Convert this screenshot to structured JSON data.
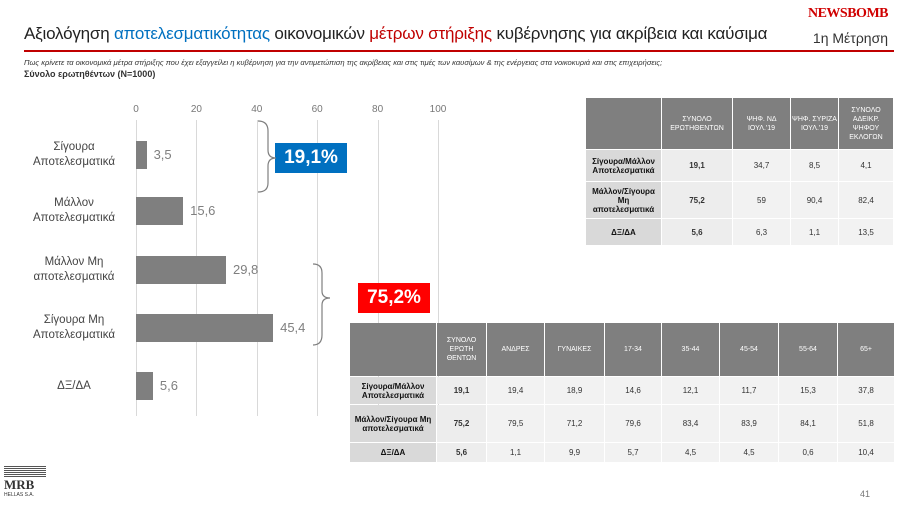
{
  "header": {
    "title": [
      "Αξιολόγηση ",
      "αποτελεσματικότητας",
      " οικονομικών ",
      "μέτρων στήριξης",
      " κυβέρνησης  για ακρίβεια και καύσιμα"
    ],
    "brand": "NEWSBOMB",
    "wave": "1η Μέτρηση",
    "question": "Πως κρίνετε τα οικονομικά μέτρα στήριξης που έχει εξαγγείλει η κυβέρνηση  για την αντιμετώπιση της ακρίβειας και στις τιμές των καυσίμων & της ενέργειας στα νοικοκυριά και στις επιχειρήσεις;",
    "base": "Σύνολο ερωτηθέντων (N=1000)"
  },
  "chart_data": {
    "type": "bar",
    "orientation": "horizontal",
    "categories": [
      "Σίγουρα Αποτελεσματικά",
      "Μάλλον Αποτελεσματικά",
      "Μάλλον Μη αποτελεσματικά",
      "Σίγουρα Μη Αποτελεσματικά",
      "ΔΞ/ΔΑ"
    ],
    "values": [
      3.5,
      15.6,
      29.8,
      45.4,
      5.6
    ],
    "value_labels": [
      "3,5",
      "15,6",
      "29,8",
      "45,4",
      "5,6"
    ],
    "color": "#7f7f7f",
    "xlim": [
      0,
      100
    ],
    "xticks": [
      0,
      20,
      40,
      60,
      80,
      100
    ],
    "grid": true,
    "annotations": [
      {
        "text": "19,1%",
        "color": "#0070c0"
      },
      {
        "text": "75,2%",
        "color": "#ff0000"
      }
    ]
  },
  "tables": [
    {
      "columns": [
        "",
        "ΣΥΝΟΛΟ ΕΡΩΤΗΘΕΝΤΩΝ",
        "ΨΗΦ. ΝΔ ΙΟΥΛ.'19",
        "ΨΗΦ. ΣΥΡΙΖΑ ΙΟΥΛ.'19",
        "ΣΥΝΟΛΟ ΑΔΕΙΚΡ. ΨΗΦΟΥ ΕΚΛΟΓΩΝ"
      ],
      "rows": [
        [
          "Σίγουρα/Μάλλον Αποτελεσματικά",
          "19,1",
          "34,7",
          "8,5",
          "4,1"
        ],
        [
          "Μάλλον/Σίγουρα Μη αποτελεσματικά",
          "75,2",
          "59",
          "90,4",
          "82,4"
        ],
        [
          "ΔΞ/ΔΑ",
          "5,6",
          "6,3",
          "1,1",
          "13,5"
        ]
      ]
    },
    {
      "columns": [
        "",
        "ΣΥΝΟΛΟ ΕΡΩΤΗ ΘΕΝΤΩΝ",
        "ΑΝΔΡΕΣ",
        "ΓΥΝΑΙΚΕΣ",
        "17-34",
        "35-44",
        "45-54",
        "55-64",
        "65+"
      ],
      "rows": [
        [
          "Σίγουρα/Μάλλον Αποτελεσματικά",
          "19,1",
          "19,4",
          "18,9",
          "14,6",
          "12,1",
          "11,7",
          "15,3",
          "37,8"
        ],
        [
          "Μάλλον/Σίγουρα Μη αποτελεσματικά",
          "75,2",
          "79,5",
          "71,2",
          "79,6",
          "83,4",
          "83,9",
          "84,1",
          "51,8"
        ],
        [
          "ΔΞ/ΔΑ",
          "5,6",
          "1,1",
          "9,9",
          "5,7",
          "4,5",
          "4,5",
          "0,6",
          "10,4"
        ]
      ]
    }
  ],
  "footer": {
    "logo": "MRB",
    "logo_sub": "HELLAS S.A.",
    "page": "41"
  }
}
